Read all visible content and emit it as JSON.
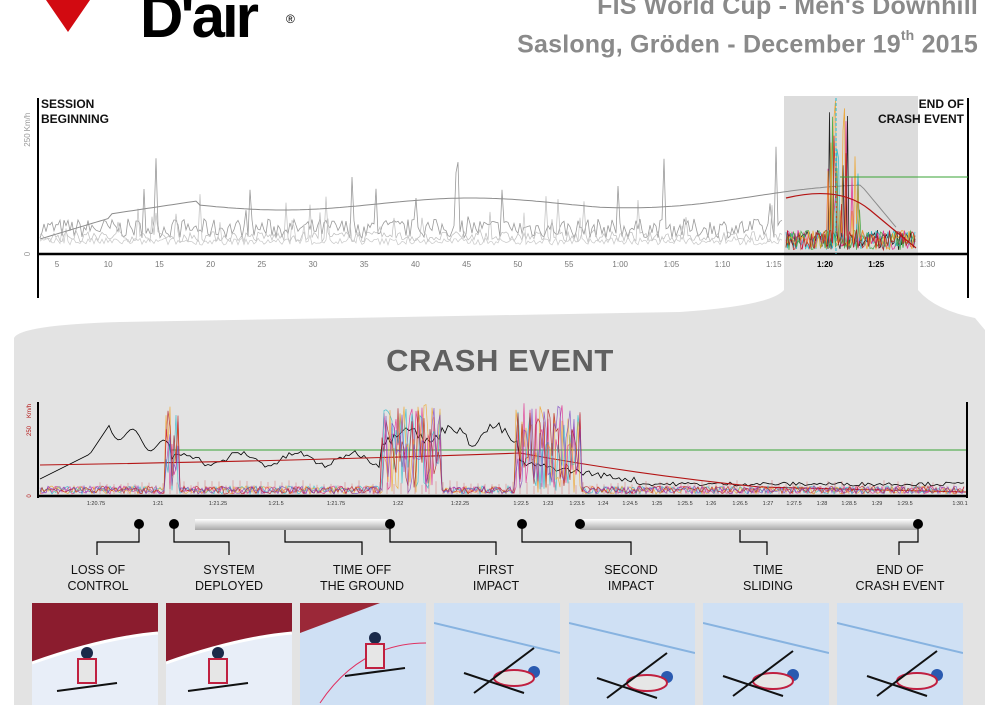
{
  "header": {
    "brand": "D'air",
    "brand_reg": "®",
    "title_line1": "FIS World Cup - Men's Downhill",
    "title_line2_main": "Saslong, Gröden - December 19",
    "title_line2_sup": "th",
    "title_line2_end": " 2015"
  },
  "session_chart": {
    "label_start_1": "SESSION",
    "label_start_2": "BEGINNING",
    "label_end_1": "END OF",
    "label_end_2": "CRASH EVENT",
    "y_unit": "Km/h",
    "y_ticks": [
      "250",
      "0"
    ],
    "x_ticks": [
      "5",
      "10",
      "15",
      "20",
      "25",
      "30",
      "35",
      "40",
      "45",
      "50",
      "55",
      "1:00",
      "1:05",
      "1:10",
      "1:15",
      "1:20",
      "1:25",
      "1:30"
    ]
  },
  "crash": {
    "title": "CRASH EVENT",
    "y_unit": "Km/h",
    "y_ticks": [
      "250",
      "0"
    ],
    "x_ticks": [
      "1:20.75",
      "1:21",
      "1:21.25",
      "1:21.5",
      "1:21.75",
      "1:22",
      "1:22.25",
      "1:22.5",
      "1:23",
      "1:23.5",
      "1:24",
      "1:24.5",
      "1:25",
      "1:25.5",
      "1:26",
      "1:26.5",
      "1:27",
      "1:27.5",
      "1:28",
      "1:28.5",
      "1:29",
      "1:29.5",
      "1:30.1"
    ]
  },
  "events": [
    {
      "label1": "LOSS OF",
      "label2": "CONTROL"
    },
    {
      "label1": "SYSTEM",
      "label2": "DEPLOYED"
    },
    {
      "label1": "TIME OFF",
      "label2": "THE GROUND"
    },
    {
      "label1": "FIRST",
      "label2": "IMPACT"
    },
    {
      "label1": "SECOND",
      "label2": "IMPACT"
    },
    {
      "label1": "TIME",
      "label2": "SLIDING"
    },
    {
      "label1": "END OF",
      "label2": "CRASH EVENT"
    }
  ],
  "colors": {
    "brand_red": "#d20a11",
    "header_gray": "#8a8a8a",
    "panel_gray": "#e3e3e3",
    "series_black": "#000000",
    "series_red": "#b41414",
    "series_green": "#3aa335",
    "series_magenta": "#e0208a",
    "series_cyan": "#22b8c8",
    "series_orange": "#f0a020"
  },
  "chart_data": [
    {
      "type": "line",
      "y_unit": "Km/h",
      "ylim": [
        0,
        250
      ],
      "x_tick_labels": [
        "5",
        "10",
        "15",
        "20",
        "25",
        "30",
        "35",
        "40",
        "45",
        "50",
        "55",
        "1:00",
        "1:05",
        "1:10",
        "1:15",
        "1:20",
        "1:25",
        "1:30"
      ],
      "highlight_range": [
        "1:17",
        "1:27.5"
      ]
    },
    {
      "type": "line",
      "title": "CRASH EVENT",
      "y_unit": "Km/h",
      "ylim": [
        0,
        250
      ],
      "x_tick_labels": [
        "1:20.75",
        "1:21",
        "1:21.25",
        "1:21.5",
        "1:21.75",
        "1:22",
        "1:22.25",
        "1:22.5",
        "1:23",
        "1:23.5",
        "1:24",
        "1:24.5",
        "1:25",
        "1:25.5",
        "1:26",
        "1:26.5",
        "1:27",
        "1:27.5",
        "1:28",
        "1:28.5",
        "1:29",
        "1:29.5",
        "1:30.1"
      ],
      "events": [
        "LOSS OF CONTROL",
        "SYSTEM DEPLOYED",
        "TIME OFF THE GROUND",
        "FIRST IMPACT",
        "SECOND IMPACT",
        "TIME SLIDING",
        "END OF CRASH EVENT"
      ]
    }
  ]
}
